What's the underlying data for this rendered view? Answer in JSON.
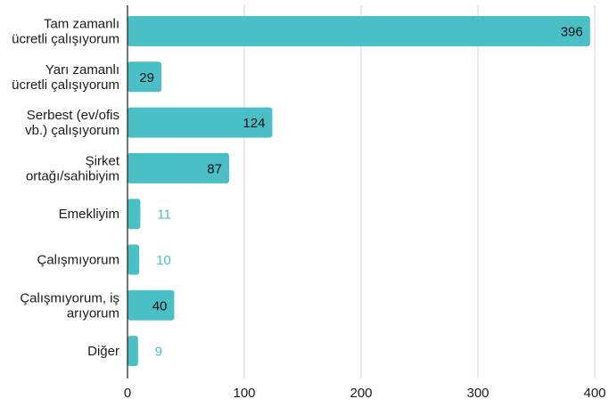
{
  "chart_data": {
    "type": "bar",
    "orientation": "horizontal",
    "categories": [
      [
        "Tam zamanlı",
        "ücretli çalışıyorum"
      ],
      [
        "Yarı zamanlı",
        "ücretli çalışıyorum"
      ],
      [
        "Serbest (ev/ofis",
        "vb.) çalışıyorum"
      ],
      [
        "Şirket",
        "ortağı/sahibiyim"
      ],
      [
        "Emekliyim"
      ],
      [
        "Çalışmıyorum"
      ],
      [
        "Çalışmıyorum, iş",
        "arıyorum"
      ],
      [
        "Diğer"
      ]
    ],
    "values": [
      396,
      29,
      124,
      87,
      11,
      10,
      40,
      9
    ],
    "xlim": [
      0,
      400
    ],
    "xticks": [
      0,
      100,
      200,
      300,
      400
    ],
    "grid": true,
    "bar_color": "#4bbfc6",
    "label_inside_color": "#111111",
    "label_outside_color": "#4bbfc6",
    "title": "",
    "xlabel": "",
    "ylabel": ""
  }
}
